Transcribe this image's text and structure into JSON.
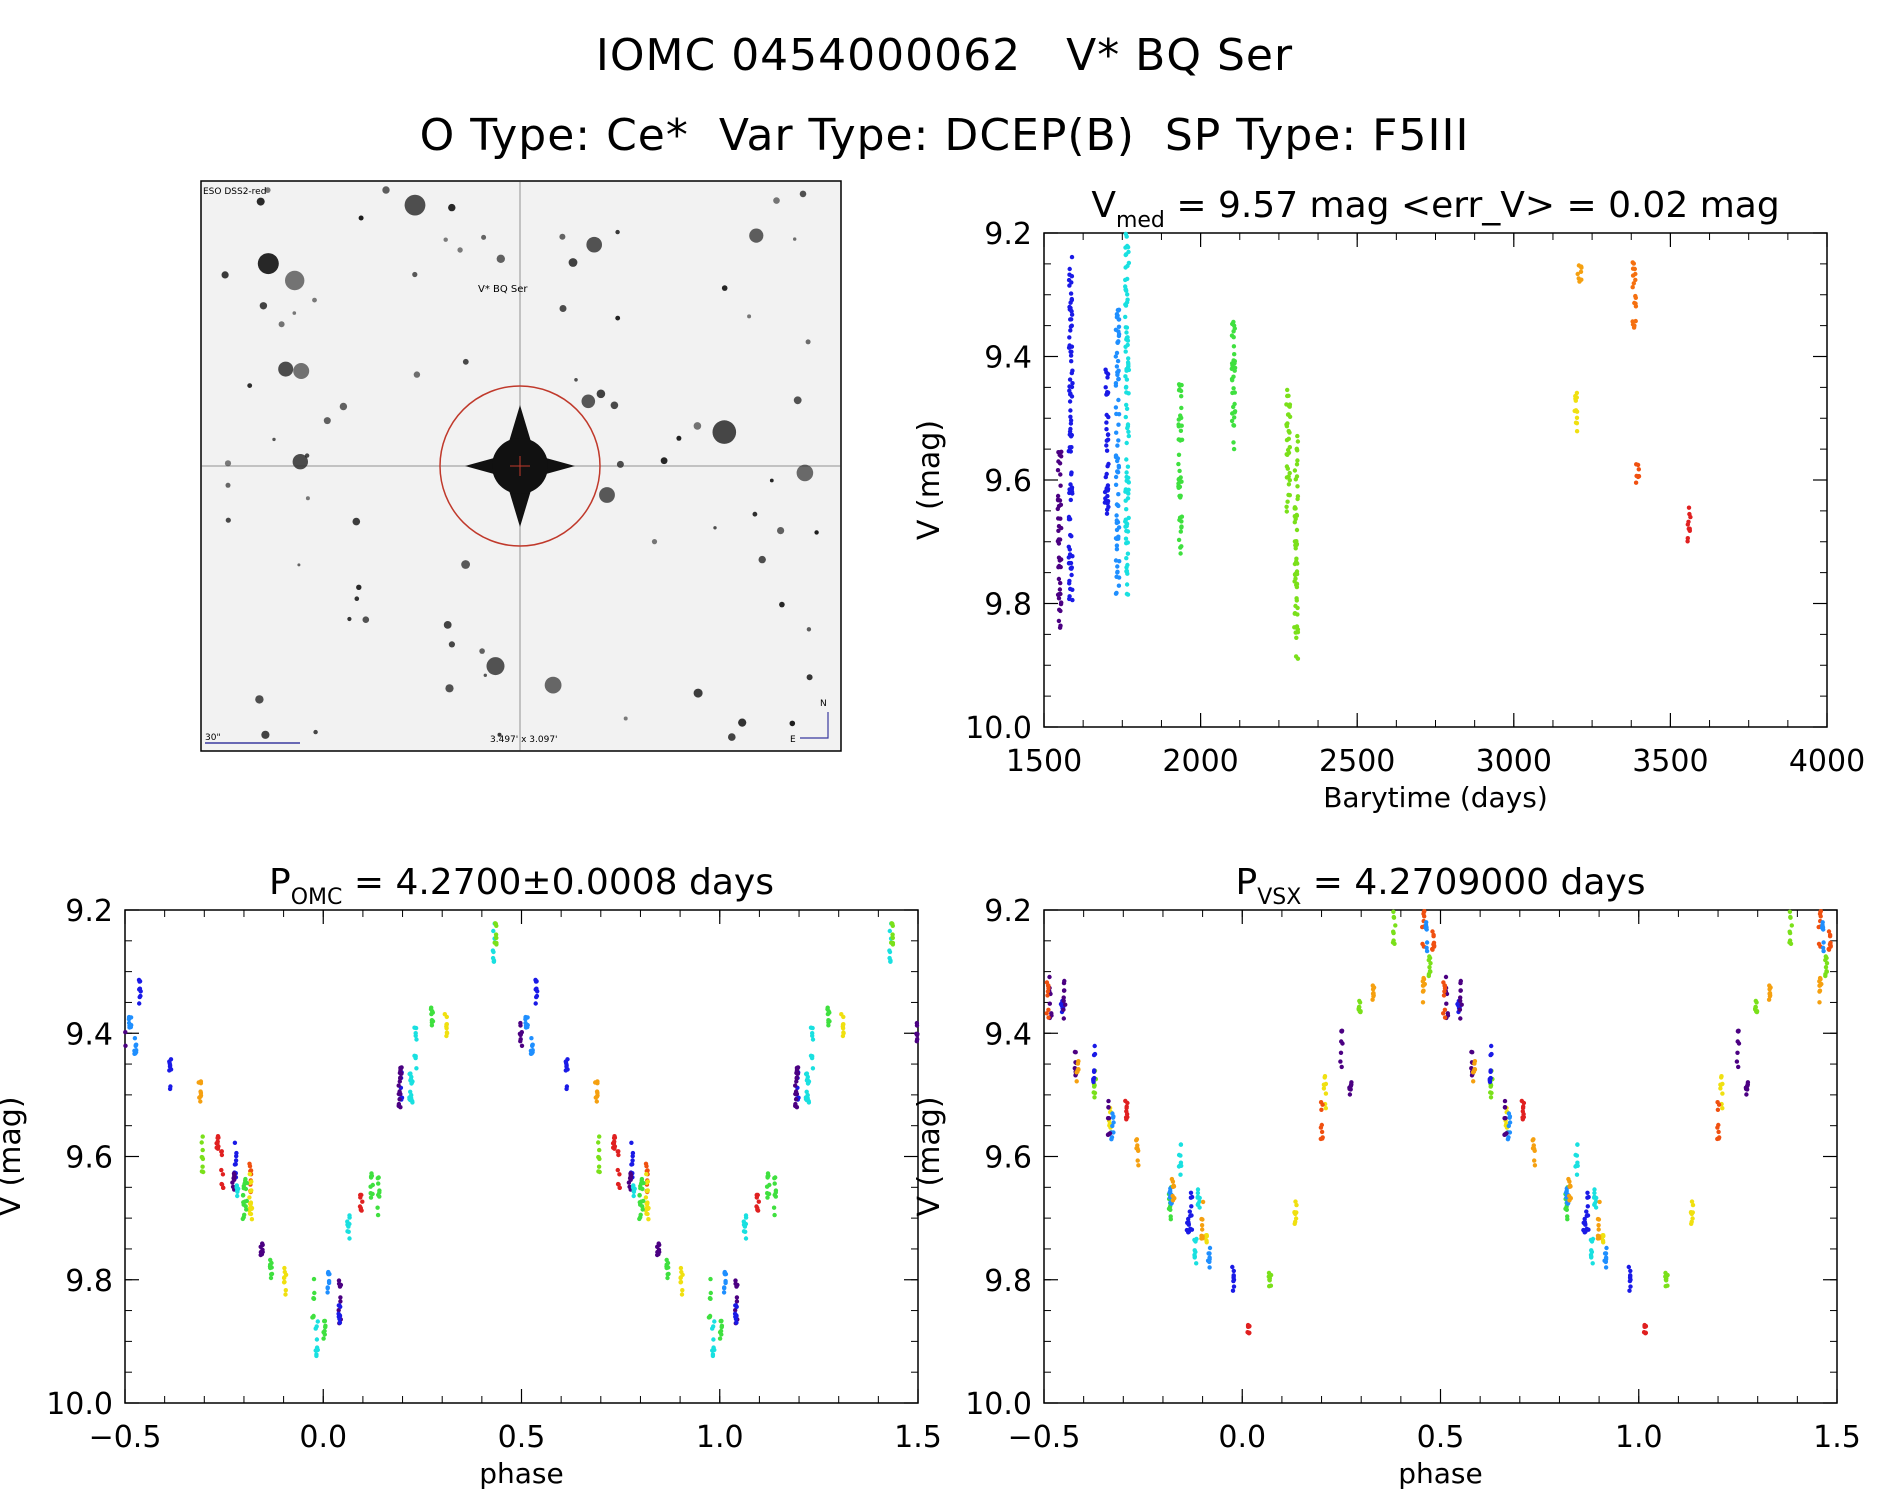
{
  "header": {
    "line1": "IOMC 0454000062   V* BQ Ser",
    "line2": "O Type: Ce*  Var Type: DCEP(B)  SP Type: F5III"
  },
  "image_panel": {
    "top_label": "ESO DSS2-red",
    "target_label": "V* BQ Ser",
    "scale_label": "30\"",
    "size_label": "3.497' x 3.097'",
    "north_label": "N",
    "east_label": "E"
  },
  "colors": {
    "axis": "#000000",
    "circle": "#c0392b",
    "image_label": "#3a3aa0",
    "target_label": "#b03030"
  },
  "chart_data": [
    {
      "type": "scatter",
      "title_main": "V",
      "title_sub": "med",
      "title_rest": " = 9.57 mag <err_V> = 0.02 mag",
      "xlabel": "Barytime (days)",
      "ylabel": "V (mag)",
      "xlim": [
        1500,
        4000
      ],
      "ylim": [
        9.2,
        10.0
      ],
      "y_inverted": true,
      "xticks": [
        "1500",
        "2000",
        "2500",
        "3000",
        "3500",
        "4000"
      ],
      "xtick_values": [
        1500,
        2000,
        2500,
        3000,
        3500,
        4000
      ],
      "yticks": [
        "9.2",
        "9.4",
        "9.6",
        "9.8",
        "10.0"
      ],
      "ytick_values": [
        9.2,
        9.4,
        9.6,
        9.8,
        10.0
      ],
      "groups": [
        {
          "name": "g1",
          "color": "#4b0082",
          "x": 1550,
          "ymin": 9.55,
          "ymax": 9.84
        },
        {
          "name": "g2",
          "color": "#1a1ae6",
          "x": 1585,
          "ymin": 9.23,
          "ymax": 9.8
        },
        {
          "name": "g3",
          "color": "#1a1ae6",
          "x": 1700,
          "ymin": 9.42,
          "ymax": 9.66
        },
        {
          "name": "g4",
          "color": "#1f8fff",
          "x": 1735,
          "ymin": 9.32,
          "ymax": 9.79
        },
        {
          "name": "g5",
          "color": "#19e0e0",
          "x": 1765,
          "ymin": 9.2,
          "ymax": 9.79
        },
        {
          "name": "g6",
          "color": "#3fe03f",
          "x": 1935,
          "ymin": 9.44,
          "ymax": 9.72
        },
        {
          "name": "g7",
          "color": "#3fe03f",
          "x": 2105,
          "ymin": 9.34,
          "ymax": 9.56
        },
        {
          "name": "g8",
          "color": "#7ae01a",
          "x": 2280,
          "ymin": 9.45,
          "ymax": 9.66
        },
        {
          "name": "g9",
          "color": "#7ae01a",
          "x": 2305,
          "ymin": 9.5,
          "ymax": 9.89
        },
        {
          "name": "g10",
          "color": "#f0e010",
          "x": 3200,
          "ymin": 9.45,
          "ymax": 9.53
        },
        {
          "name": "g11",
          "color": "#f5a010",
          "x": 3210,
          "ymin": 9.25,
          "ymax": 9.28
        },
        {
          "name": "g12",
          "color": "#f57010",
          "x": 3385,
          "ymin": 9.24,
          "ymax": 9.36
        },
        {
          "name": "g13",
          "color": "#f05010",
          "x": 3395,
          "ymin": 9.57,
          "ymax": 9.61
        },
        {
          "name": "g14",
          "color": "#e02020",
          "x": 3560,
          "ymin": 9.63,
          "ymax": 9.7
        }
      ]
    },
    {
      "type": "scatter",
      "title_main": "P",
      "title_sub": "OMC",
      "title_rest": " = 4.2700±0.0008 days",
      "xlabel": "phase",
      "ylabel": "V (mag)",
      "xlim": [
        -0.5,
        1.5
      ],
      "ylim": [
        9.2,
        10.0
      ],
      "y_inverted": true,
      "xticks": [
        "−0.5",
        "0.0",
        "0.5",
        "1.0",
        "1.5"
      ],
      "xtick_values": [
        -0.5,
        0.0,
        0.5,
        1.0,
        1.5
      ],
      "yticks": [
        "9.2",
        "9.4",
        "9.6",
        "9.8",
        "10.0"
      ],
      "ytick_values": [
        9.2,
        9.4,
        9.6,
        9.8,
        10.0
      ],
      "phase_shift": 0.0
    },
    {
      "type": "scatter",
      "title_main": "P",
      "title_sub": "VSX",
      "title_rest": " = 4.2709000 days",
      "xlabel": "phase",
      "ylabel": "V (mag)",
      "xlim": [
        -0.5,
        1.5
      ],
      "ylim": [
        9.2,
        10.0
      ],
      "y_inverted": true,
      "xticks": [
        "−0.5",
        "0.0",
        "0.5",
        "1.0",
        "1.5"
      ],
      "xtick_values": [
        -0.5,
        0.0,
        0.5,
        1.0,
        1.5
      ],
      "yticks": [
        "9.2",
        "9.4",
        "9.6",
        "9.8",
        "10.0"
      ],
      "ytick_values": [
        9.2,
        9.4,
        9.6,
        9.8,
        10.0
      ],
      "phase_shift": -0.03
    }
  ]
}
